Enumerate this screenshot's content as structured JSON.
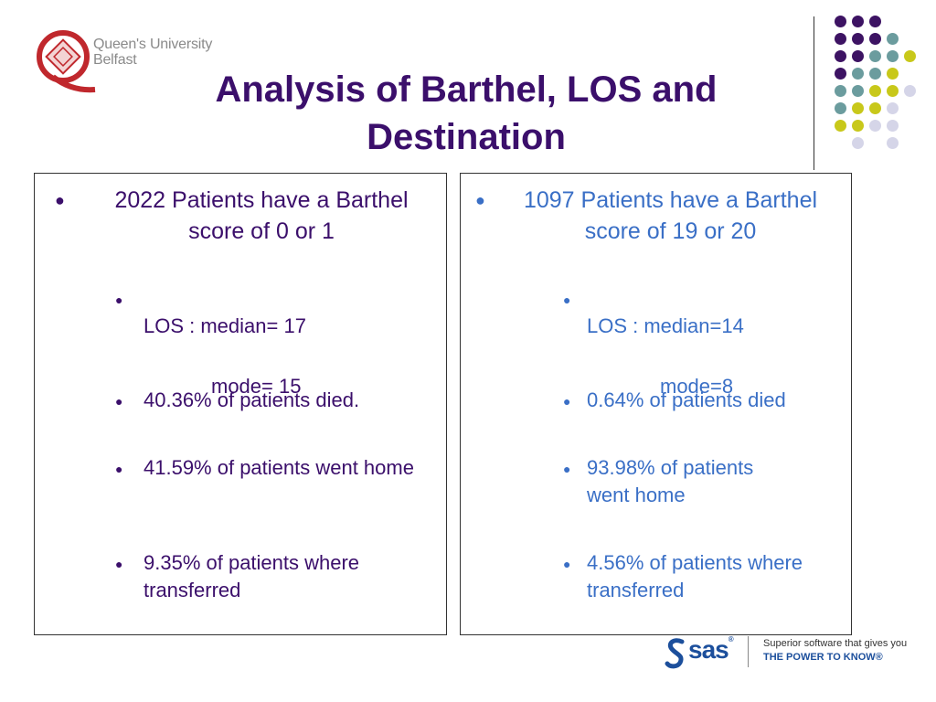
{
  "header": {
    "logo_text": "Queen's University\nBelfast",
    "title": "Analysis of Barthel, LOS and Destination"
  },
  "left_panel": {
    "main": "2022 Patients have a Barthel score of 0 or 1",
    "los_line1": "LOS : median= 17",
    "los_line2": "mode= 15",
    "died": "40.36% of patients died.",
    "home": "41.59% of patients went home",
    "transferred": "9.35% of patients where transferred"
  },
  "right_panel": {
    "main": "1097 Patients have a Barthel score of 19 or 20",
    "los_line1": "LOS : median=14",
    "los_line2": "mode=8",
    "died": "0.64% of patients died",
    "home": "93.98% of  patients\nwent home",
    "transferred": "4.56% of patients where transferred"
  },
  "footer": {
    "brand": "sas",
    "reg_mark": "®",
    "tagline1": "Superior software that gives you",
    "tagline2": "THE POWER TO KNOW®"
  },
  "colors": {
    "title": "#3b0f6b",
    "left_text": "#3b0f6b",
    "right_text": "#3a6fc6",
    "dot_purple": "#3d1363",
    "dot_teal": "#6b9c9e",
    "dot_yellow": "#c8c81a",
    "dot_lavender": "#d5d5e8",
    "qub_red": "#c0282d"
  }
}
